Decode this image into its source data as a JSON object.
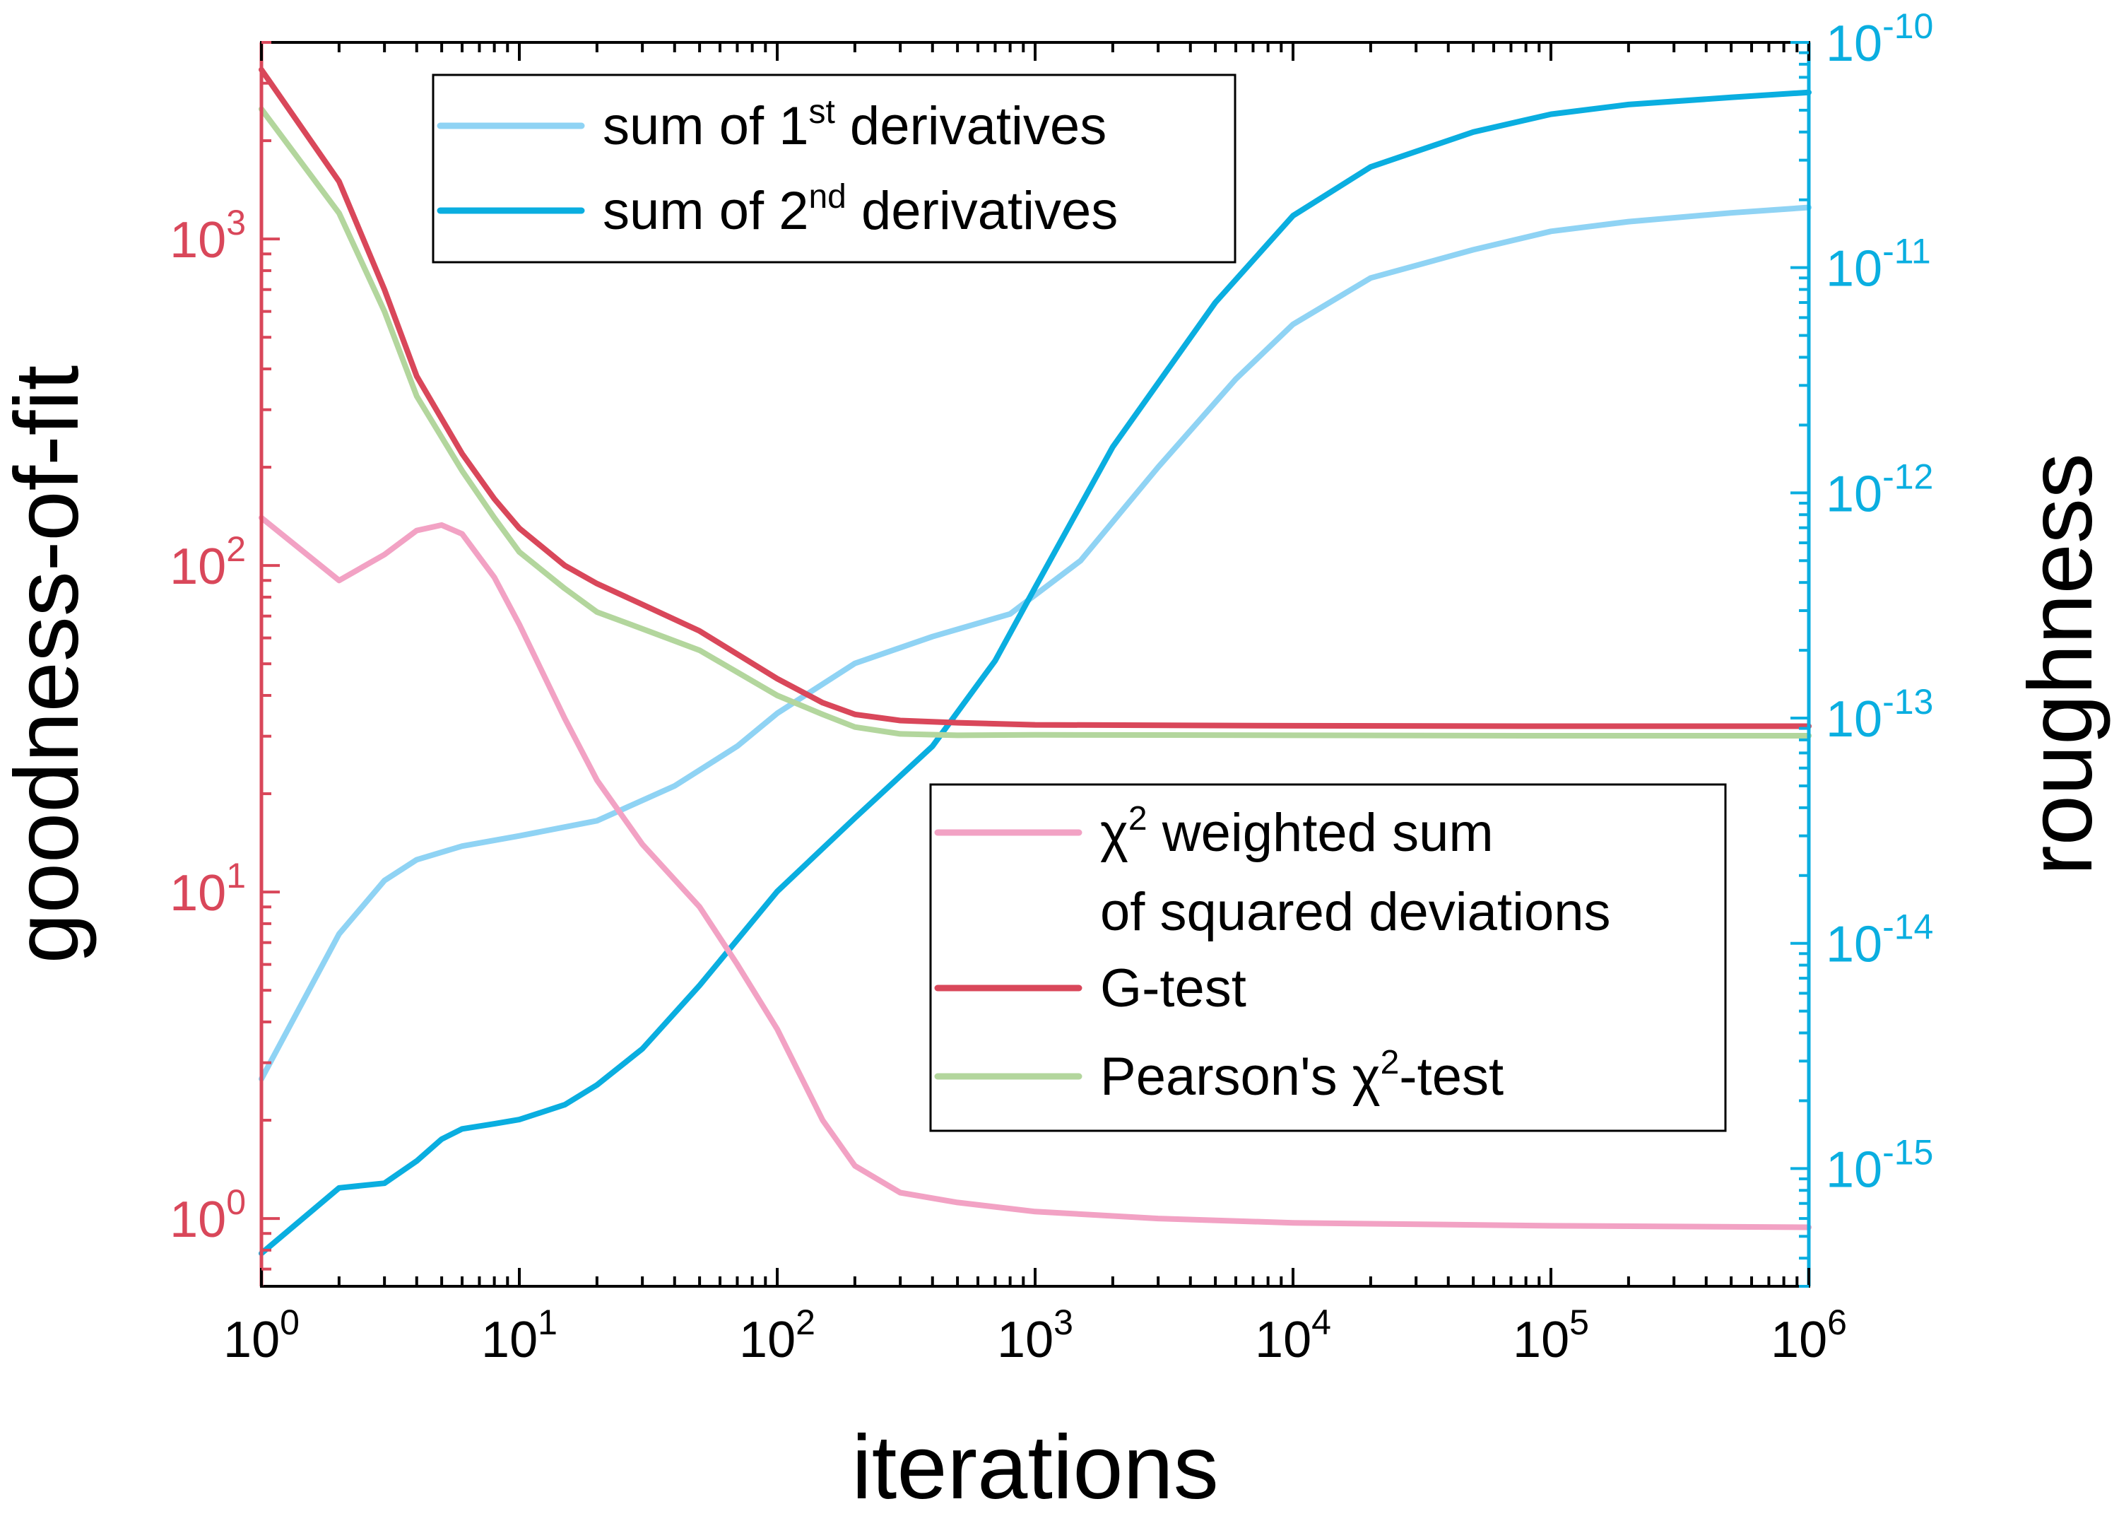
{
  "chart_data": {
    "type": "line",
    "x_scale": "log",
    "y_left_scale": "log",
    "y_right_scale": "log",
    "xlim": [
      1,
      1000000
    ],
    "ylim_left": [
      0.62,
      4000
    ],
    "ylim_right": [
      3e-16,
      1e-10
    ],
    "xlabel": "iterations",
    "ylabel_left": "goodness-of-fit",
    "ylabel_right": "roughness",
    "x_ticks": [
      {
        "value": 1,
        "base": "10",
        "exp": "0"
      },
      {
        "value": 10,
        "base": "10",
        "exp": "1"
      },
      {
        "value": 100,
        "base": "10",
        "exp": "2"
      },
      {
        "value": 1000,
        "base": "10",
        "exp": "3"
      },
      {
        "value": 10000,
        "base": "10",
        "exp": "4"
      },
      {
        "value": 100000,
        "base": "10",
        "exp": "5"
      },
      {
        "value": 1000000,
        "base": "10",
        "exp": "6"
      }
    ],
    "y_left_ticks": [
      {
        "value": 1,
        "base": "10",
        "exp": "0"
      },
      {
        "value": 10,
        "base": "10",
        "exp": "1"
      },
      {
        "value": 100,
        "base": "10",
        "exp": "2"
      },
      {
        "value": 1000,
        "base": "10",
        "exp": "3"
      }
    ],
    "y_right_ticks": [
      {
        "value": 1e-15,
        "base": "10",
        "exp": "-15"
      },
      {
        "value": 1e-14,
        "base": "10",
        "exp": "-14"
      },
      {
        "value": 1e-13,
        "base": "10",
        "exp": "-13"
      },
      {
        "value": 1e-12,
        "base": "10",
        "exp": "-12"
      },
      {
        "value": 1e-11,
        "base": "10",
        "exp": "-11"
      },
      {
        "value": 1e-10,
        "base": "10",
        "exp": "-10"
      }
    ],
    "colors": {
      "left_axis": "#d9475a",
      "right_axis": "#0aaee0",
      "frame": "#000000"
    },
    "grid": false,
    "series": [
      {
        "name": "sum of 1st derivatives",
        "axis": "right",
        "color": "#8fd3f4",
        "x": [
          1,
          2,
          3,
          4,
          6,
          10,
          20,
          40,
          70,
          100,
          200,
          400,
          800,
          1500,
          3000,
          6000,
          10000,
          20000,
          50000,
          100000,
          200000,
          500000,
          1000000
        ],
        "y": [
          2.5e-15,
          1.1e-14,
          1.9e-14,
          2.35e-14,
          2.7e-14,
          3e-14,
          3.5e-14,
          5e-14,
          7.5e-14,
          1.05e-13,
          1.75e-13,
          2.3e-13,
          2.9e-13,
          5e-13,
          1.3e-12,
          3.2e-12,
          5.6e-12,
          9e-12,
          1.2e-11,
          1.45e-11,
          1.6e-11,
          1.75e-11,
          1.85e-11
        ]
      },
      {
        "name": "sum of 2nd derivatives",
        "axis": "right",
        "color": "#0aaee0",
        "x": [
          1,
          2,
          3,
          4,
          5,
          6,
          8,
          10,
          15,
          20,
          30,
          50,
          100,
          200,
          400,
          700,
          1000,
          2000,
          5000,
          10000,
          20000,
          50000,
          100000,
          200000,
          500000,
          1000000
        ],
        "y": [
          4.2e-16,
          8.2e-16,
          8.6e-16,
          1.08e-15,
          1.35e-15,
          1.5e-15,
          1.58e-15,
          1.65e-15,
          1.92e-15,
          2.35e-15,
          3.4e-15,
          6.5e-15,
          1.7e-14,
          3.6e-14,
          7.5e-14,
          1.8e-13,
          3.8e-13,
          1.6e-12,
          7e-12,
          1.7e-11,
          2.8e-11,
          4e-11,
          4.8e-11,
          5.3e-11,
          5.7e-11,
          6e-11
        ]
      },
      {
        "name": "χ² weighted sum of squared deviations",
        "axis": "left",
        "color": "#f2a2c4",
        "x": [
          1,
          2,
          3,
          4,
          5,
          6,
          8,
          10,
          15,
          20,
          30,
          50,
          70,
          100,
          150,
          200,
          300,
          500,
          1000,
          3000,
          10000,
          100000,
          1000000
        ],
        "y": [
          140,
          90,
          108,
          128,
          133,
          125,
          92,
          66,
          34,
          22,
          14,
          9,
          6,
          3.8,
          2,
          1.45,
          1.2,
          1.12,
          1.05,
          1.0,
          0.97,
          0.95,
          0.94
        ]
      },
      {
        "name": "G-test",
        "axis": "left",
        "color": "#d9475a",
        "x": [
          1,
          2,
          3,
          4,
          6,
          8,
          10,
          15,
          20,
          30,
          50,
          100,
          150,
          200,
          300,
          500,
          1000,
          10000,
          100000,
          1000000
        ],
        "y": [
          3300,
          1500,
          700,
          380,
          220,
          160,
          130,
          100,
          88,
          76,
          63,
          45,
          38,
          35,
          33.5,
          33,
          32.5,
          32.3,
          32.2,
          32.2
        ]
      },
      {
        "name": "Pearson's χ²-test",
        "axis": "left",
        "color": "#b3d69d",
        "x": [
          1,
          2,
          3,
          4,
          6,
          8,
          10,
          15,
          20,
          30,
          50,
          100,
          150,
          200,
          300,
          500,
          1000,
          10000,
          100000,
          1000000
        ],
        "y": [
          2500,
          1200,
          600,
          330,
          195,
          140,
          110,
          85,
          72,
          64,
          55,
          40,
          35,
          32,
          30.5,
          30.2,
          30.3,
          30.2,
          30.1,
          30.1
        ]
      }
    ],
    "legends": [
      {
        "placement": "top-left",
        "entries": [
          {
            "series": 0,
            "lines": [
              [
                {
                  "t": "sum of 1"
                },
                {
                  "t": "st",
                  "sup": true
                },
                {
                  "t": " derivatives"
                }
              ]
            ]
          },
          {
            "series": 1,
            "lines": [
              [
                {
                  "t": "sum of 2"
                },
                {
                  "t": "nd",
                  "sup": true
                },
                {
                  "t": " derivatives"
                }
              ]
            ]
          }
        ]
      },
      {
        "placement": "center-right",
        "entries": [
          {
            "series": 2,
            "lines": [
              [
                {
                  "t": "χ"
                },
                {
                  "t": "2",
                  "sup": true
                },
                {
                  "t": " weighted sum"
                }
              ],
              [
                {
                  "t": "of squared deviations"
                }
              ]
            ]
          },
          {
            "series": 3,
            "lines": [
              [
                {
                  "t": "G-test"
                }
              ]
            ]
          },
          {
            "series": 4,
            "lines": [
              [
                {
                  "t": "Pearson's χ"
                },
                {
                  "t": "2",
                  "sup": true
                },
                {
                  "t": "-test"
                }
              ]
            ]
          }
        ]
      }
    ]
  }
}
